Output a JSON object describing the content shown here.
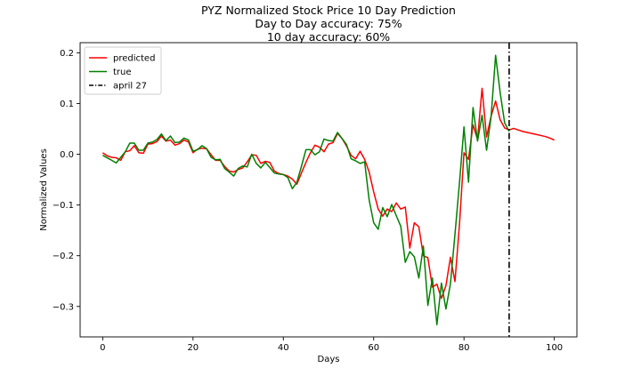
{
  "chart_data": {
    "type": "line",
    "title": [
      "PYZ Normalized Stock Price 10 Day Prediction",
      "Day to Day accuracy: 75%",
      "10 day accuracy: 60%"
    ],
    "xlabel": "Days",
    "ylabel": "Normalized Values",
    "xlim": [
      -5,
      105
    ],
    "ylim": [
      -0.36,
      0.22
    ],
    "xticks": [
      0,
      20,
      40,
      60,
      80,
      100
    ],
    "yticks": [
      -0.3,
      -0.2,
      -0.1,
      0.0,
      0.1,
      0.2
    ],
    "xtick_labels": [
      "0",
      "20",
      "40",
      "60",
      "80",
      "100"
    ],
    "ytick_labels": [
      "−0.3",
      "−0.2",
      "−0.1",
      "0.0",
      "0.1",
      "0.2"
    ],
    "grid": false,
    "legend": {
      "placement": "top-left"
    },
    "series": [
      {
        "name": "predicted",
        "color": "#ff0000",
        "style": "solid",
        "x": [
          0,
          1,
          2,
          3,
          4,
          5,
          6,
          7,
          8,
          9,
          10,
          11,
          12,
          13,
          14,
          15,
          16,
          17,
          18,
          19,
          20,
          21,
          22,
          23,
          24,
          25,
          26,
          27,
          28,
          29,
          30,
          31,
          32,
          33,
          34,
          35,
          36,
          37,
          38,
          39,
          40,
          41,
          42,
          43,
          44,
          45,
          46,
          47,
          48,
          49,
          50,
          51,
          52,
          53,
          54,
          55,
          56,
          57,
          58,
          59,
          60,
          61,
          62,
          63,
          64,
          65,
          66,
          67,
          68,
          69,
          70,
          71,
          72,
          73,
          74,
          75,
          76,
          77,
          78,
          79,
          80,
          81,
          82,
          83,
          84,
          85,
          86,
          87,
          88,
          89,
          90,
          91,
          92,
          93,
          94,
          95,
          96,
          97,
          98,
          99,
          100
        ],
        "values": [
          0.003,
          -0.003,
          -0.006,
          -0.007,
          -0.012,
          0.005,
          0.007,
          0.017,
          0.003,
          0.002,
          0.02,
          0.021,
          0.025,
          0.036,
          0.026,
          0.028,
          0.018,
          0.021,
          0.028,
          0.024,
          0.003,
          0.01,
          0.012,
          0.011,
          -0.001,
          -0.012,
          -0.012,
          -0.024,
          -0.033,
          -0.035,
          -0.03,
          -0.027,
          -0.015,
          -0.001,
          -0.002,
          -0.018,
          -0.014,
          -0.016,
          -0.033,
          -0.038,
          -0.04,
          -0.043,
          -0.049,
          -0.059,
          -0.037,
          -0.016,
          0.003,
          0.018,
          0.014,
          0.005,
          0.02,
          0.023,
          0.041,
          0.031,
          0.016,
          -0.002,
          -0.009,
          0.006,
          -0.01,
          -0.035,
          -0.074,
          -0.108,
          -0.122,
          -0.108,
          -0.113,
          -0.096,
          -0.108,
          -0.104,
          -0.185,
          -0.135,
          -0.143,
          -0.2,
          -0.204,
          -0.262,
          -0.256,
          -0.284,
          -0.259,
          -0.203,
          -0.251,
          -0.138,
          0.003,
          -0.01,
          0.058,
          0.029,
          0.13,
          0.034,
          0.075,
          0.105,
          0.068,
          0.052,
          0.048,
          0.051,
          0.048,
          0.045,
          0.043,
          0.041,
          0.039,
          0.037,
          0.035,
          0.032,
          0.028
        ]
      },
      {
        "name": "true",
        "color": "#008000",
        "style": "solid",
        "x": [
          0,
          1,
          2,
          3,
          4,
          5,
          6,
          7,
          8,
          9,
          10,
          11,
          12,
          13,
          14,
          15,
          16,
          17,
          18,
          19,
          20,
          21,
          22,
          23,
          24,
          25,
          26,
          27,
          28,
          29,
          30,
          31,
          32,
          33,
          34,
          35,
          36,
          37,
          38,
          39,
          40,
          41,
          42,
          43,
          44,
          45,
          46,
          47,
          48,
          49,
          50,
          51,
          52,
          53,
          54,
          55,
          56,
          57,
          58,
          59,
          60,
          61,
          62,
          63,
          64,
          65,
          66,
          67,
          68,
          69,
          70,
          71,
          72,
          73,
          74,
          75,
          76,
          77,
          78,
          79,
          80,
          81,
          82,
          83,
          84,
          85,
          86,
          87,
          88,
          89,
          90
        ],
        "values": [
          -0.002,
          -0.007,
          -0.012,
          -0.017,
          -0.006,
          0.005,
          0.022,
          0.022,
          0.008,
          0.008,
          0.022,
          0.024,
          0.029,
          0.04,
          0.027,
          0.036,
          0.023,
          0.024,
          0.032,
          0.028,
          0.006,
          0.009,
          0.017,
          0.011,
          -0.006,
          -0.011,
          -0.01,
          -0.028,
          -0.035,
          -0.043,
          -0.028,
          -0.023,
          -0.025,
          0.0,
          -0.018,
          -0.027,
          -0.016,
          -0.026,
          -0.037,
          -0.039,
          -0.04,
          -0.046,
          -0.068,
          -0.055,
          -0.024,
          0.009,
          0.009,
          -0.001,
          0.005,
          0.03,
          0.027,
          0.026,
          0.043,
          0.031,
          0.019,
          -0.009,
          -0.013,
          -0.018,
          -0.015,
          -0.09,
          -0.135,
          -0.148,
          -0.105,
          -0.123,
          -0.099,
          -0.121,
          -0.142,
          -0.213,
          -0.192,
          -0.202,
          -0.244,
          -0.181,
          -0.298,
          -0.244,
          -0.336,
          -0.254,
          -0.305,
          -0.255,
          -0.158,
          -0.056,
          0.054,
          -0.055,
          0.092,
          0.026,
          0.077,
          0.008,
          0.074,
          0.195,
          0.122,
          0.062,
          0.045
        ]
      }
    ],
    "annotations": [
      {
        "type": "vline",
        "x": 90,
        "name": "april 27",
        "color": "#000000",
        "style": "dashdot"
      }
    ]
  }
}
